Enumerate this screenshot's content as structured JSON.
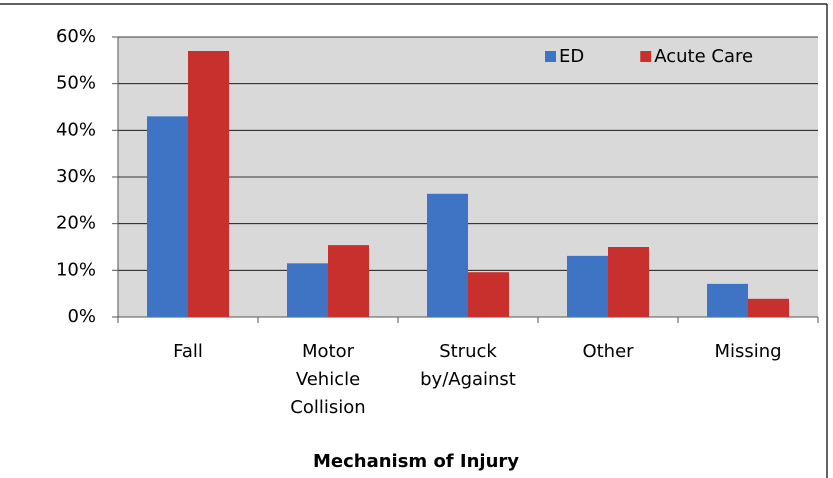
{
  "chart_data": {
    "type": "bar",
    "x_label": "Mechanism of Injury",
    "categories": [
      "Fall",
      "Motor Vehicle Collision",
      "Struck by/Against",
      "Other",
      "Missing"
    ],
    "series": [
      {
        "name": "ED",
        "color": "#3f74c4",
        "values": [
          43,
          11.5,
          26.4,
          13.1,
          7.1
        ]
      },
      {
        "name": "Acute Care",
        "color": "#c8302e",
        "values": [
          57,
          15.4,
          9.6,
          15.0,
          3.9
        ]
      }
    ],
    "ylim": [
      0,
      60
    ],
    "yticks": [
      {
        "value": 0,
        "label": "0%"
      },
      {
        "value": 10,
        "label": "10%"
      },
      {
        "value": 20,
        "label": "20%"
      },
      {
        "value": 30,
        "label": "30%"
      },
      {
        "value": 40,
        "label": "40%"
      },
      {
        "value": 50,
        "label": "50%"
      },
      {
        "value": 60,
        "label": "60%"
      }
    ],
    "grid": true,
    "legend": "top-right"
  }
}
